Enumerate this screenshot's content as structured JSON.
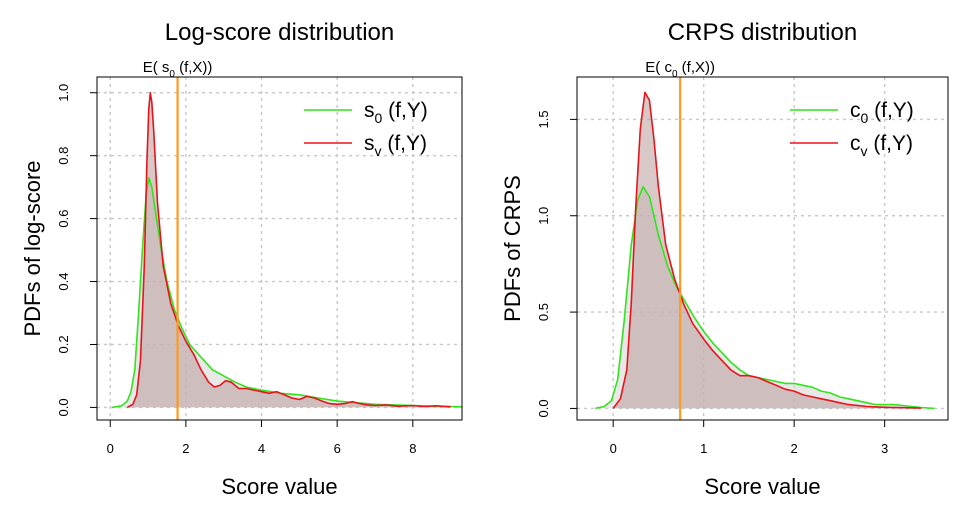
{
  "chart_data": [
    {
      "type": "line",
      "title": "Log-score distribution",
      "xlabel": "Score value",
      "ylabel": "PDFs of log-score",
      "xlim": [
        -0.35,
        9.3
      ],
      "ylim": [
        -0.04,
        1.05
      ],
      "xticks": [
        0,
        2,
        4,
        6,
        8
      ],
      "yticks": [
        0.0,
        0.2,
        0.4,
        0.6,
        0.8,
        1.0
      ],
      "xtick_labels": [
        "0",
        "2",
        "4",
        "6",
        "8"
      ],
      "ytick_labels": [
        "0.0",
        "0.2",
        "0.4",
        "0.6",
        "0.8",
        "1.0"
      ],
      "grid": true,
      "vline": {
        "x": 1.78,
        "label_main": "E( s",
        "label_sub": "0",
        "label_rest": " (f,X))",
        "color": "#ff9a1f"
      },
      "legend": {
        "position": "top-right"
      },
      "series": [
        {
          "name": "s0 (f,Y)",
          "label_main": "s",
          "label_sub": "0",
          "label_rest": " (f,Y)",
          "color": "#33e31c",
          "fill": "#d9d9d9",
          "points": [
            [
              0.05,
              0.0
            ],
            [
              0.3,
              0.005
            ],
            [
              0.45,
              0.02
            ],
            [
              0.55,
              0.05
            ],
            [
              0.65,
              0.12
            ],
            [
              0.75,
              0.3
            ],
            [
              0.85,
              0.5
            ],
            [
              0.95,
              0.68
            ],
            [
              1.02,
              0.73
            ],
            [
              1.1,
              0.7
            ],
            [
              1.2,
              0.62
            ],
            [
              1.35,
              0.5
            ],
            [
              1.5,
              0.4
            ],
            [
              1.7,
              0.31
            ],
            [
              1.9,
              0.25
            ],
            [
              2.1,
              0.2
            ],
            [
              2.4,
              0.16
            ],
            [
              2.7,
              0.12
            ],
            [
              3.0,
              0.1
            ],
            [
              3.3,
              0.08
            ],
            [
              3.6,
              0.065
            ],
            [
              4.0,
              0.055
            ],
            [
              4.5,
              0.045
            ],
            [
              5.0,
              0.04
            ],
            [
              5.5,
              0.03
            ],
            [
              6.0,
              0.02
            ],
            [
              6.5,
              0.015
            ],
            [
              7.0,
              0.01
            ],
            [
              7.5,
              0.008
            ],
            [
              8.0,
              0.006
            ],
            [
              8.5,
              0.004
            ],
            [
              9.0,
              0.003
            ],
            [
              9.3,
              0.002
            ]
          ]
        },
        {
          "name": "sv (f,Y)",
          "label_main": "s",
          "label_sub": "v",
          "label_rest": " (f,Y)",
          "color": "#e8141c",
          "fill": "#b89a9a",
          "points": [
            [
              0.45,
              0.0
            ],
            [
              0.6,
              0.01
            ],
            [
              0.7,
              0.04
            ],
            [
              0.8,
              0.15
            ],
            [
              0.9,
              0.45
            ],
            [
              0.97,
              0.78
            ],
            [
              1.02,
              0.95
            ],
            [
              1.06,
              1.0
            ],
            [
              1.1,
              0.97
            ],
            [
              1.15,
              0.88
            ],
            [
              1.25,
              0.65
            ],
            [
              1.4,
              0.45
            ],
            [
              1.6,
              0.33
            ],
            [
              1.8,
              0.26
            ],
            [
              2.0,
              0.21
            ],
            [
              2.2,
              0.17
            ],
            [
              2.4,
              0.12
            ],
            [
              2.6,
              0.08
            ],
            [
              2.75,
              0.065
            ],
            [
              2.9,
              0.07
            ],
            [
              3.05,
              0.085
            ],
            [
              3.2,
              0.08
            ],
            [
              3.4,
              0.06
            ],
            [
              3.6,
              0.06
            ],
            [
              3.8,
              0.055
            ],
            [
              4.0,
              0.05
            ],
            [
              4.2,
              0.045
            ],
            [
              4.4,
              0.05
            ],
            [
              4.6,
              0.04
            ],
            [
              4.8,
              0.03
            ],
            [
              5.0,
              0.025
            ],
            [
              5.2,
              0.035
            ],
            [
              5.4,
              0.03
            ],
            [
              5.6,
              0.02
            ],
            [
              5.8,
              0.012
            ],
            [
              6.0,
              0.01
            ],
            [
              6.2,
              0.012
            ],
            [
              6.4,
              0.018
            ],
            [
              6.6,
              0.012
            ],
            [
              6.8,
              0.008
            ],
            [
              7.0,
              0.006
            ],
            [
              7.3,
              0.008
            ],
            [
              7.6,
              0.004
            ],
            [
              8.0,
              0.006
            ],
            [
              8.3,
              0.003
            ],
            [
              8.6,
              0.005
            ],
            [
              9.0,
              0.002
            ]
          ]
        }
      ]
    },
    {
      "type": "line",
      "title": "CRPS distribution",
      "xlabel": "Score value",
      "ylabel": "PDFs of CRPS",
      "xlim": [
        -0.4,
        3.7
      ],
      "ylim": [
        -0.06,
        1.72
      ],
      "xticks": [
        0,
        1,
        2,
        3
      ],
      "yticks": [
        0.0,
        0.5,
        1.0,
        1.5
      ],
      "xtick_labels": [
        "0",
        "1",
        "2",
        "3"
      ],
      "ytick_labels": [
        "0.0",
        "0.5",
        "1.0",
        "1.5"
      ],
      "grid": true,
      "vline": {
        "x": 0.74,
        "label_main": "E( c",
        "label_sub": "0",
        "label_rest": " (f,X))",
        "color": "#ff9a1f"
      },
      "legend": {
        "position": "top-right"
      },
      "series": [
        {
          "name": "c0 (f,Y)",
          "label_main": "c",
          "label_sub": "0",
          "label_rest": " (f,Y)",
          "color": "#33e31c",
          "fill": "#d9d9d9",
          "points": [
            [
              -0.2,
              0.0
            ],
            [
              -0.1,
              0.01
            ],
            [
              -0.02,
              0.04
            ],
            [
              0.05,
              0.15
            ],
            [
              0.12,
              0.45
            ],
            [
              0.2,
              0.85
            ],
            [
              0.27,
              1.08
            ],
            [
              0.33,
              1.15
            ],
            [
              0.4,
              1.1
            ],
            [
              0.5,
              0.9
            ],
            [
              0.6,
              0.74
            ],
            [
              0.7,
              0.63
            ],
            [
              0.8,
              0.55
            ],
            [
              0.9,
              0.47
            ],
            [
              1.0,
              0.4
            ],
            [
              1.1,
              0.34
            ],
            [
              1.2,
              0.29
            ],
            [
              1.3,
              0.24
            ],
            [
              1.4,
              0.2
            ],
            [
              1.5,
              0.17
            ],
            [
              1.6,
              0.16
            ],
            [
              1.7,
              0.15
            ],
            [
              1.8,
              0.14
            ],
            [
              1.9,
              0.13
            ],
            [
              2.0,
              0.13
            ],
            [
              2.1,
              0.12
            ],
            [
              2.2,
              0.11
            ],
            [
              2.3,
              0.09
            ],
            [
              2.4,
              0.08
            ],
            [
              2.5,
              0.06
            ],
            [
              2.6,
              0.05
            ],
            [
              2.7,
              0.04
            ],
            [
              2.8,
              0.03
            ],
            [
              2.9,
              0.02
            ],
            [
              3.0,
              0.02
            ],
            [
              3.1,
              0.02
            ],
            [
              3.2,
              0.015
            ],
            [
              3.3,
              0.01
            ],
            [
              3.4,
              0.005
            ],
            [
              3.55,
              0.0
            ]
          ]
        },
        {
          "name": "cv (f,Y)",
          "label_main": "c",
          "label_sub": "v",
          "label_rest": " (f,Y)",
          "color": "#e8141c",
          "fill": "#b89a9a",
          "points": [
            [
              0.0,
              0.0
            ],
            [
              0.08,
              0.05
            ],
            [
              0.15,
              0.2
            ],
            [
              0.2,
              0.55
            ],
            [
              0.25,
              1.05
            ],
            [
              0.3,
              1.45
            ],
            [
              0.35,
              1.64
            ],
            [
              0.4,
              1.6
            ],
            [
              0.45,
              1.4
            ],
            [
              0.5,
              1.15
            ],
            [
              0.58,
              0.85
            ],
            [
              0.68,
              0.67
            ],
            [
              0.78,
              0.54
            ],
            [
              0.88,
              0.44
            ],
            [
              1.0,
              0.36
            ],
            [
              1.1,
              0.3
            ],
            [
              1.2,
              0.25
            ],
            [
              1.3,
              0.2
            ],
            [
              1.4,
              0.17
            ],
            [
              1.5,
              0.17
            ],
            [
              1.6,
              0.16
            ],
            [
              1.7,
              0.14
            ],
            [
              1.8,
              0.12
            ],
            [
              1.9,
              0.1
            ],
            [
              2.0,
              0.09
            ],
            [
              2.1,
              0.07
            ],
            [
              2.2,
              0.06
            ],
            [
              2.3,
              0.05
            ],
            [
              2.4,
              0.04
            ],
            [
              2.5,
              0.03
            ],
            [
              2.6,
              0.02
            ],
            [
              2.7,
              0.015
            ],
            [
              2.8,
              0.01
            ],
            [
              2.9,
              0.008
            ],
            [
              3.0,
              0.006
            ],
            [
              3.2,
              0.004
            ],
            [
              3.4,
              0.002
            ]
          ]
        }
      ]
    }
  ]
}
